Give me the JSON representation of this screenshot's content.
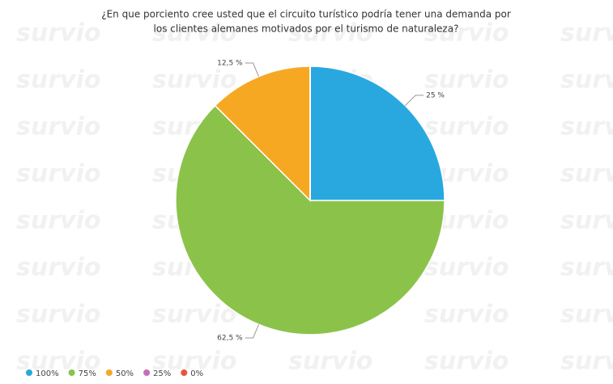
{
  "chart_data": {
    "type": "pie",
    "title": [
      "¿En que porciento cree usted que el circuito turístico podría tener una demanda por",
      "los clientes alemanes motivados por el turismo de naturaleza?"
    ],
    "watermark": "survio",
    "categories": [
      "100%",
      "75%",
      "50%",
      "25%",
      "0%"
    ],
    "values": [
      25,
      62.5,
      12.5,
      0,
      0
    ],
    "value_labels": [
      "25 %",
      "62,5 %",
      "12,5 %",
      null,
      null
    ],
    "colors": [
      "#29a8e0",
      "#8bc34a",
      "#f7a823",
      "#c86fb4",
      "#e8553e"
    ],
    "legend": "bottom-left"
  }
}
